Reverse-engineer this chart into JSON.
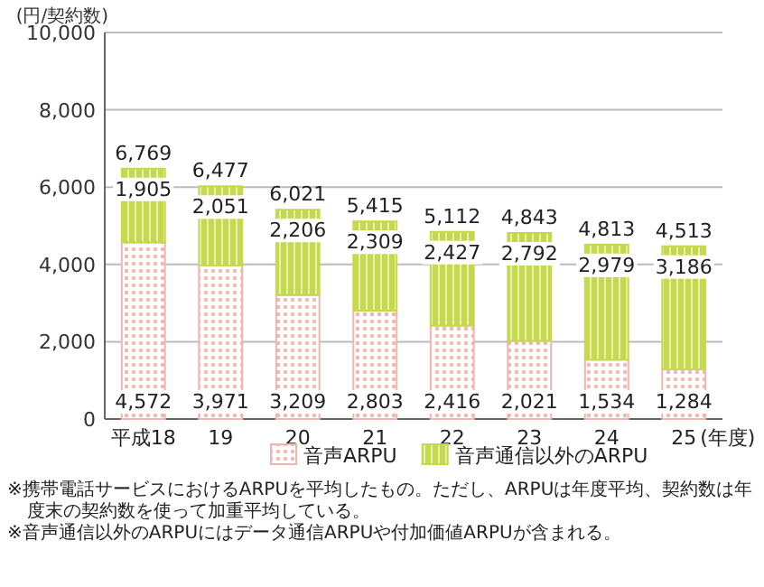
{
  "chart_data": {
    "type": "bar",
    "stacked": true,
    "ylabel": "(円/契約数)",
    "xlabel": "(年度)",
    "categories": [
      "平成18",
      "19",
      "20",
      "21",
      "22",
      "23",
      "24",
      "25"
    ],
    "series": [
      {
        "name": "音声ARPU",
        "color": "#f2b4ac",
        "values": [
          4572,
          3971,
          3209,
          2803,
          2416,
          2021,
          1534,
          1284
        ],
        "value_labels": [
          "4,572",
          "3,971",
          "3,209",
          "2,803",
          "2,416",
          "2,021",
          "1,534",
          "1,284"
        ]
      },
      {
        "name": "音声通信以外のARPU",
        "color": "#c6d94e",
        "values": [
          1905,
          2051,
          2206,
          2309,
          2427,
          2792,
          2979,
          3186
        ],
        "value_labels": [
          "1,905",
          "2,051",
          "2,206",
          "2,309",
          "2,427",
          "2,792",
          "2,979",
          "3,186"
        ]
      }
    ],
    "ylim": [
      0,
      10000
    ],
    "yticks": [
      {
        "value": 0,
        "label": "0"
      },
      {
        "value": 2000,
        "label": "2,000"
      },
      {
        "value": 4000,
        "label": "4,000"
      },
      {
        "value": 6000,
        "label": "6,000"
      },
      {
        "value": 8000,
        "label": "8,000"
      },
      {
        "value": 10000,
        "label": "10,000"
      }
    ],
    "grid": "y",
    "legend": "bottom",
    "annotations": [
      {
        "text": "6,769",
        "x": "平成18",
        "y": 6477
      },
      {
        "text": "6,477",
        "x": "19",
        "y": 6022
      },
      {
        "text": "6,021",
        "x": "20",
        "y": 5415
      },
      {
        "text": "5,415",
        "x": "21",
        "y": 5112
      },
      {
        "text": "5,112",
        "x": "22",
        "y": 4843
      },
      {
        "text": "4,843",
        "x": "23",
        "y": 4813
      },
      {
        "text": "4,813",
        "x": "24",
        "y": 4513
      },
      {
        "text": "4,513",
        "x": "25",
        "y": 4470
      },
      "※携帯電話サービスにおけるARPUを平均したもの。ただし、ARPUは年度平均、契約数は年度末の契約数を使って加重平均している。",
      "※音声通信以外のARPUにはデータ通信ARPUや付加価値ARPUが含まれる。"
    ]
  }
}
